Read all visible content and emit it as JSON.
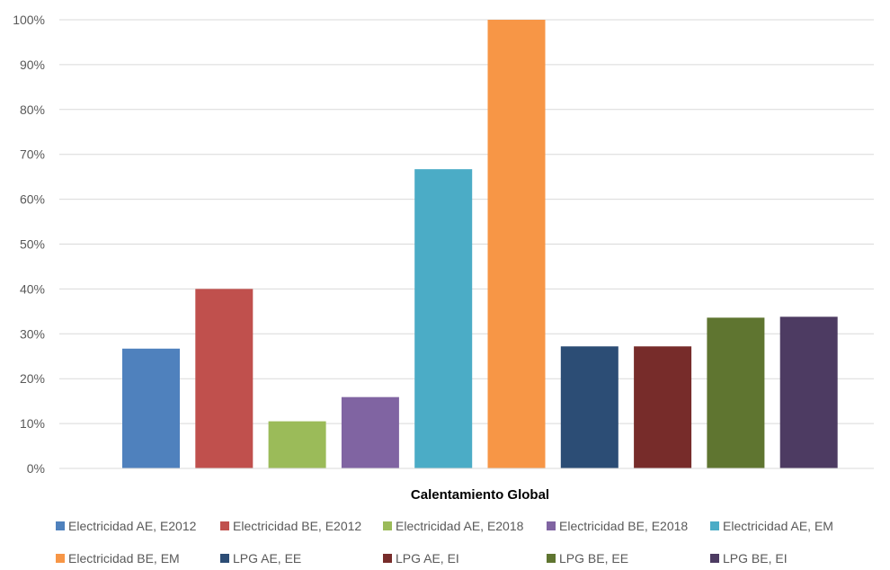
{
  "chart_data": {
    "type": "bar",
    "title": "",
    "xlabel": "",
    "ylabel": "",
    "categories": [
      "Calentamiento Global"
    ],
    "ylim": [
      0,
      100
    ],
    "y_ticks": [
      "0%",
      "10%",
      "20%",
      "30%",
      "40%",
      "50%",
      "60%",
      "70%",
      "80%",
      "90%",
      "100%"
    ],
    "grid": true,
    "legend_position": "bottom",
    "series": [
      {
        "name": "Electricidad AE, E2012",
        "values": [
          26.7
        ],
        "color": "#4f81bd"
      },
      {
        "name": "Electricidad BE, E2012",
        "values": [
          40.0
        ],
        "color": "#c0504d"
      },
      {
        "name": "Electricidad AE, E2018",
        "values": [
          10.5
        ],
        "color": "#9bbb59"
      },
      {
        "name": "Electricidad BE, E2018",
        "values": [
          15.9
        ],
        "color": "#8064a2"
      },
      {
        "name": "Electricidad AE, EM",
        "values": [
          66.7
        ],
        "color": "#4bacc6"
      },
      {
        "name": "Electricidad BE, EM",
        "values": [
          100.0
        ],
        "color": "#f79646"
      },
      {
        "name": "LPG AE, EE",
        "values": [
          27.2
        ],
        "color": "#2c4d75"
      },
      {
        "name": "LPG AE, EI",
        "values": [
          27.2
        ],
        "color": "#772c2a"
      },
      {
        "name": "LPG BE, EE",
        "values": [
          33.6
        ],
        "color": "#5f7530"
      },
      {
        "name": "LPG BE, EI",
        "values": [
          33.8
        ],
        "color": "#4d3b62"
      }
    ]
  }
}
